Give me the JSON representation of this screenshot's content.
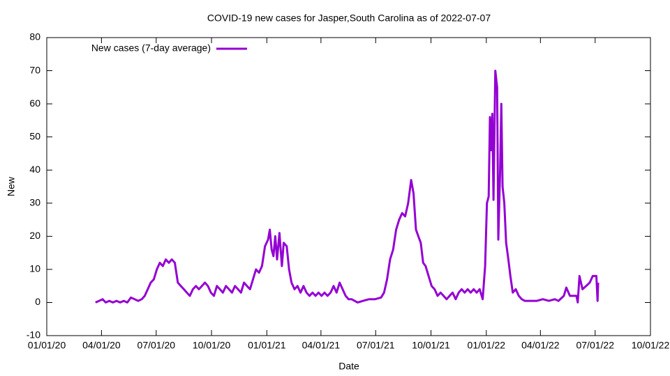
{
  "chart_data": {
    "type": "line",
    "title": "COVID-19 new cases for Jasper,South Carolina as of 2022-07-07",
    "x_label": "Date",
    "y_label": "New",
    "xlim": [
      "2020-01-01",
      "2022-10-01"
    ],
    "xticks": [
      {
        "value": "2020-01-01",
        "label": "01/01/20"
      },
      {
        "value": "2020-04-01",
        "label": "04/01/20"
      },
      {
        "value": "2020-07-01",
        "label": "07/01/20"
      },
      {
        "value": "2020-10-01",
        "label": "10/01/20"
      },
      {
        "value": "2021-01-01",
        "label": "01/01/21"
      },
      {
        "value": "2021-04-01",
        "label": "04/01/21"
      },
      {
        "value": "2021-07-01",
        "label": "07/01/21"
      },
      {
        "value": "2021-10-01",
        "label": "10/01/21"
      },
      {
        "value": "2022-01-01",
        "label": "01/01/22"
      },
      {
        "value": "2022-04-01",
        "label": "04/01/22"
      },
      {
        "value": "2022-07-01",
        "label": "07/01/22"
      },
      {
        "value": "2022-10-01",
        "label": "10/01/22"
      }
    ],
    "ylim": [
      -10,
      80
    ],
    "yticks": [
      -10,
      0,
      10,
      20,
      30,
      40,
      50,
      60,
      70,
      80
    ],
    "legend": "top-left",
    "x": [
      "2020-03-22",
      "2020-03-28",
      "2020-04-03",
      "2020-04-08",
      "2020-04-14",
      "2020-04-20",
      "2020-04-26",
      "2020-05-02",
      "2020-05-08",
      "2020-05-14",
      "2020-05-20",
      "2020-05-26",
      "2020-06-01",
      "2020-06-07",
      "2020-06-12",
      "2020-06-17",
      "2020-06-22",
      "2020-06-27",
      "2020-07-02",
      "2020-07-07",
      "2020-07-12",
      "2020-07-17",
      "2020-07-22",
      "2020-07-27",
      "2020-08-01",
      "2020-08-06",
      "2020-08-11",
      "2020-08-16",
      "2020-08-21",
      "2020-08-26",
      "2020-08-31",
      "2020-09-05",
      "2020-09-10",
      "2020-09-15",
      "2020-09-20",
      "2020-09-25",
      "2020-09-30",
      "2020-10-05",
      "2020-10-10",
      "2020-10-15",
      "2020-10-20",
      "2020-10-25",
      "2020-10-30",
      "2020-11-04",
      "2020-11-09",
      "2020-11-14",
      "2020-11-19",
      "2020-11-24",
      "2020-11-29",
      "2020-12-04",
      "2020-12-09",
      "2020-12-14",
      "2020-12-19",
      "2020-12-24",
      "2020-12-29",
      "2021-01-03",
      "2021-01-06",
      "2021-01-09",
      "2021-01-12",
      "2021-01-15",
      "2021-01-18",
      "2021-01-22",
      "2021-01-26",
      "2021-01-29",
      "2021-02-03",
      "2021-02-07",
      "2021-02-11",
      "2021-02-16",
      "2021-02-21",
      "2021-02-26",
      "2021-03-03",
      "2021-03-08",
      "2021-03-13",
      "2021-03-18",
      "2021-03-23",
      "2021-03-28",
      "2021-04-02",
      "2021-04-07",
      "2021-04-12",
      "2021-04-17",
      "2021-04-22",
      "2021-04-27",
      "2021-05-02",
      "2021-05-07",
      "2021-05-12",
      "2021-05-17",
      "2021-05-22",
      "2021-06-01",
      "2021-06-10",
      "2021-06-20",
      "2021-06-30",
      "2021-07-10",
      "2021-07-15",
      "2021-07-20",
      "2021-07-25",
      "2021-07-30",
      "2021-08-04",
      "2021-08-09",
      "2021-08-14",
      "2021-08-19",
      "2021-08-24",
      "2021-08-29",
      "2021-09-02",
      "2021-09-06",
      "2021-09-10",
      "2021-09-14",
      "2021-09-18",
      "2021-09-22",
      "2021-09-27",
      "2021-10-02",
      "2021-10-07",
      "2021-10-12",
      "2021-10-17",
      "2021-10-22",
      "2021-10-27",
      "2021-11-01",
      "2021-11-06",
      "2021-11-11",
      "2021-11-16",
      "2021-11-21",
      "2021-11-26",
      "2021-12-01",
      "2021-12-06",
      "2021-12-11",
      "2021-12-16",
      "2021-12-21",
      "2021-12-26",
      "2021-12-30",
      "2022-01-02",
      "2022-01-05",
      "2022-01-07",
      "2022-01-09",
      "2022-01-11",
      "2022-01-13",
      "2022-01-16",
      "2022-01-19",
      "2022-01-21",
      "2022-01-24",
      "2022-01-26",
      "2022-01-28",
      "2022-01-31",
      "2022-02-03",
      "2022-02-06",
      "2022-02-10",
      "2022-02-14",
      "2022-02-19",
      "2022-02-24",
      "2022-03-01",
      "2022-03-06",
      "2022-03-16",
      "2022-03-26",
      "2022-04-05",
      "2022-04-15",
      "2022-04-25",
      "2022-05-01",
      "2022-05-10",
      "2022-05-14",
      "2022-05-20",
      "2022-05-31",
      "2022-06-02",
      "2022-06-05",
      "2022-06-10",
      "2022-06-16",
      "2022-06-22",
      "2022-06-27",
      "2022-07-03",
      "2022-07-05",
      "2022-07-06"
    ],
    "series": [
      {
        "name": "New cases (7-day average)",
        "color": "#9400d3",
        "values": [
          0,
          0.5,
          1,
          0,
          0.5,
          0,
          0.5,
          0,
          0.5,
          0,
          1.5,
          1,
          0.5,
          1,
          2,
          4,
          6,
          7,
          10,
          12,
          11,
          13,
          12,
          13,
          12,
          6,
          5,
          4,
          3,
          2,
          4,
          5,
          4,
          5,
          6,
          5,
          3,
          2,
          5,
          4,
          3,
          5,
          4,
          3,
          5,
          4,
          3,
          6,
          5,
          4,
          7,
          10,
          9,
          11,
          17,
          19,
          22,
          16,
          14,
          20,
          13,
          21,
          11,
          18,
          17,
          10,
          6,
          4,
          5,
          3,
          5,
          3,
          2,
          3,
          2,
          3,
          2,
          3,
          2,
          3,
          5,
          3,
          6,
          4,
          2,
          1,
          1,
          0,
          0.5,
          1,
          1,
          1.5,
          3,
          7,
          13,
          16,
          22,
          25,
          27,
          26,
          30,
          37,
          33,
          22,
          20,
          18,
          12,
          11,
          8,
          5,
          4,
          2,
          3,
          2,
          1,
          2,
          3,
          1,
          3,
          4,
          3,
          4,
          3,
          4,
          3,
          4,
          1,
          11,
          30,
          32,
          56,
          46,
          57,
          31,
          70,
          65,
          19,
          40,
          60,
          35,
          30,
          18,
          14,
          8,
          3,
          4,
          2,
          1,
          0.5,
          0.5,
          0.5,
          1,
          0.5,
          1,
          0.5,
          2,
          4.5,
          2,
          2,
          0,
          8,
          4,
          5,
          6,
          8,
          8,
          0.5,
          6
        ]
      }
    ]
  }
}
